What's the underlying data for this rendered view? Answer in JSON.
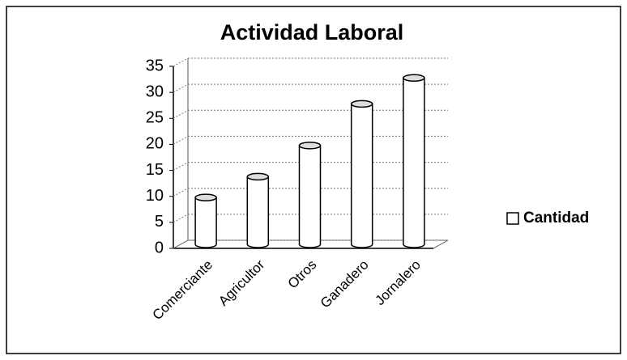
{
  "chart_data": {
    "type": "bar3d",
    "title": "Actividad Laboral",
    "categories": [
      "Comerciante",
      "Agricultor",
      "Otros",
      "Ganadero",
      "Jornalero"
    ],
    "series": [
      {
        "name": "Cantidad",
        "color": "#ffffff",
        "values": [
          9,
          13,
          19,
          27,
          32
        ]
      }
    ],
    "ylim": [
      0,
      35
    ],
    "yticks": [
      0,
      5,
      10,
      15,
      20,
      25,
      30,
      35
    ],
    "grid": true,
    "legend": "right"
  }
}
